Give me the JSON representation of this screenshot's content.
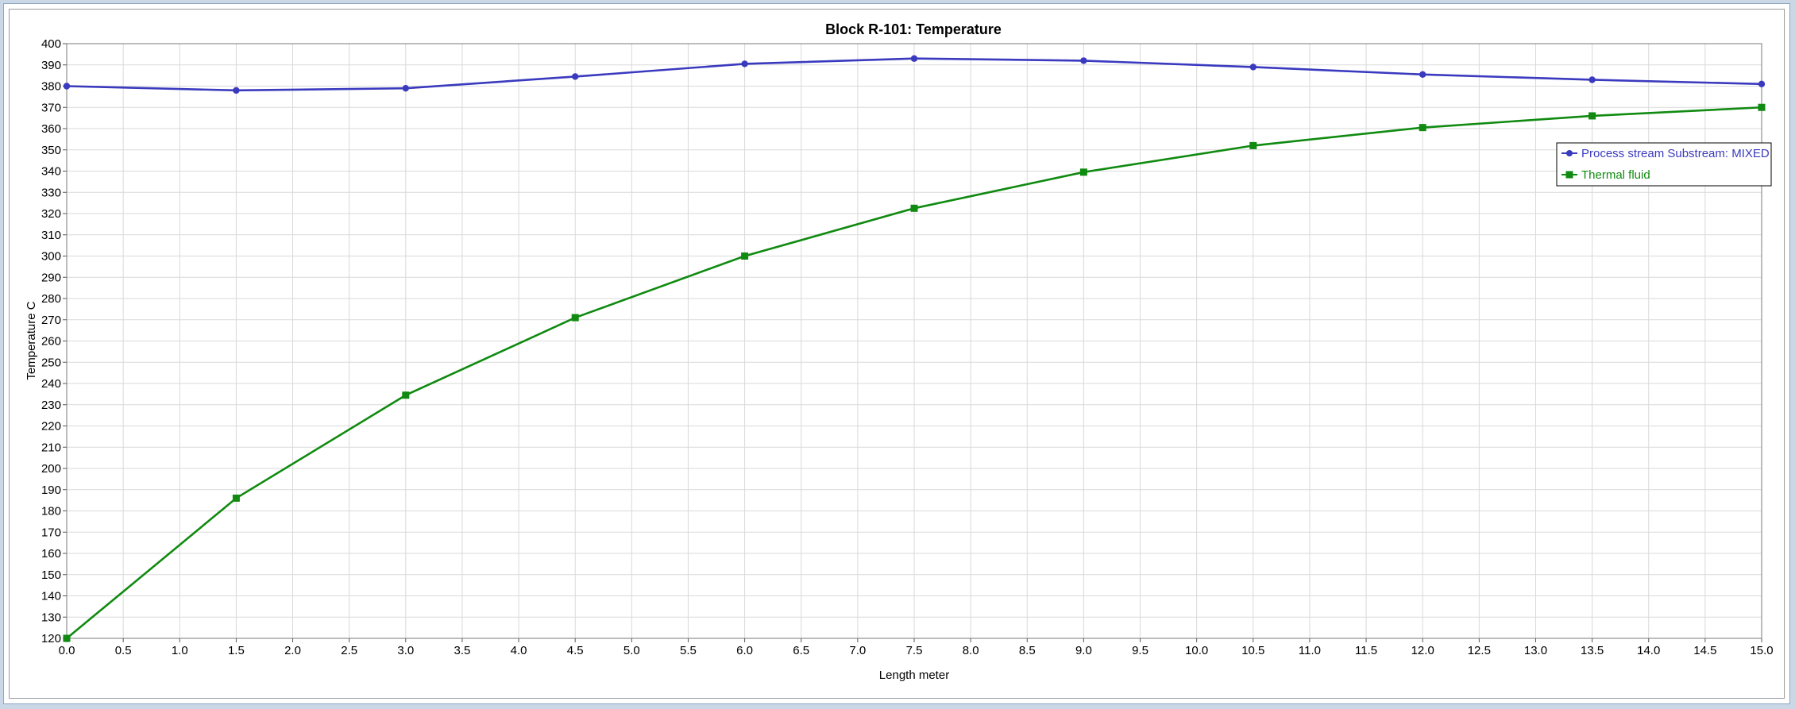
{
  "chart_data": {
    "type": "line",
    "title": "Block R-101: Temperature",
    "xlabel": "Length meter",
    "ylabel": "Temperature C",
    "xlim": [
      0,
      15
    ],
    "ylim": [
      120,
      400
    ],
    "x_ticks": [
      "0.0",
      "0.5",
      "1.0",
      "1.5",
      "2.0",
      "2.5",
      "3.0",
      "3.5",
      "4.0",
      "4.5",
      "5.0",
      "5.5",
      "6.0",
      "6.5",
      "7.0",
      "7.5",
      "8.0",
      "8.5",
      "9.0",
      "9.5",
      "10.0",
      "10.5",
      "11.0",
      "11.5",
      "12.0",
      "12.5",
      "13.0",
      "13.5",
      "14.0",
      "14.5",
      "15.0"
    ],
    "y_ticks": [
      "120",
      "130",
      "140",
      "150",
      "160",
      "170",
      "180",
      "190",
      "200",
      "210",
      "220",
      "230",
      "240",
      "250",
      "260",
      "270",
      "280",
      "290",
      "300",
      "310",
      "320",
      "330",
      "340",
      "350",
      "360",
      "370",
      "380",
      "390",
      "400"
    ],
    "grid": true,
    "legend_position": "right",
    "series": [
      {
        "name": "Process stream Substream: MIXED",
        "color": "#3a3abf",
        "marker": "circle",
        "x": [
          0,
          1.5,
          3,
          4.5,
          6,
          7.5,
          9,
          10.5,
          12,
          13.5,
          15
        ],
        "y": [
          380,
          378,
          379,
          384.5,
          390.5,
          393,
          392,
          389,
          385.5,
          383,
          381
        ]
      },
      {
        "name": "Thermal fluid",
        "color": "#108a10",
        "marker": "square",
        "x": [
          0,
          1.5,
          3,
          4.5,
          6,
          7.5,
          9,
          10.5,
          12,
          13.5,
          15
        ],
        "y": [
          120,
          186,
          234.5,
          271,
          300,
          322.5,
          339.5,
          352,
          360.5,
          366,
          370
        ]
      }
    ]
  }
}
